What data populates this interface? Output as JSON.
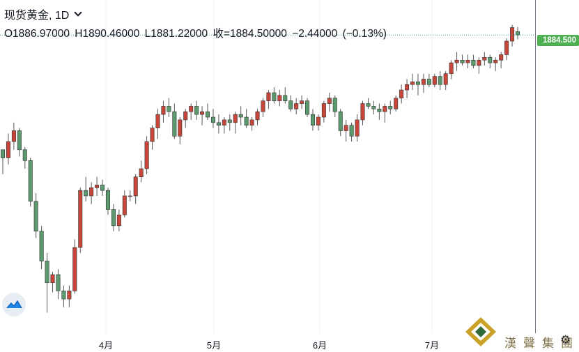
{
  "header": {
    "title": "现货黄金, 1D",
    "ohlc_line": "O1886.97000  H1890.46000  L1881.22000  收=1884.50000  −2.44000 (−0.13%)"
  },
  "last_price_label": "1884.500",
  "months": [
    "4月",
    "5月",
    "6月",
    "7月"
  ],
  "watermark_text": "漢聲集團",
  "colors": {
    "up": "#c84639",
    "down": "#5b9a6d",
    "price_tag": "#4caf50",
    "grid": "#eef0f3"
  },
  "icons": {
    "logo": "tradingview-cloud-icon",
    "settings": "gear-icon"
  },
  "chart_data": {
    "type": "candlestick",
    "title": "现货黄金, 1D",
    "x_axis_labels": [
      "4月",
      "5月",
      "6月",
      "7月"
    ],
    "ylim": [
      1670,
      1900
    ],
    "grid": true,
    "last_close": 1884.5,
    "candles": [
      [
        1800,
        1800,
        1782,
        1794
      ],
      [
        1794,
        1812,
        1789,
        1806
      ],
      [
        1806,
        1820,
        1800,
        1814
      ],
      [
        1814,
        1816,
        1795,
        1800
      ],
      [
        1800,
        1802,
        1786,
        1792
      ],
      [
        1792,
        1794,
        1758,
        1762
      ],
      [
        1762,
        1768,
        1735,
        1740
      ],
      [
        1740,
        1744,
        1712,
        1718
      ],
      [
        1718,
        1724,
        1680,
        1702
      ],
      [
        1702,
        1710,
        1695,
        1708
      ],
      [
        1708,
        1712,
        1690,
        1696
      ],
      [
        1696,
        1700,
        1684,
        1690
      ],
      [
        1690,
        1700,
        1684,
        1696
      ],
      [
        1696,
        1734,
        1694,
        1728
      ],
      [
        1728,
        1772,
        1724,
        1770
      ],
      [
        1770,
        1780,
        1762,
        1766
      ],
      [
        1766,
        1776,
        1760,
        1772
      ],
      [
        1772,
        1780,
        1766,
        1774
      ],
      [
        1774,
        1778,
        1766,
        1770
      ],
      [
        1770,
        1772,
        1752,
        1756
      ],
      [
        1756,
        1760,
        1740,
        1744
      ],
      [
        1744,
        1756,
        1740,
        1752
      ],
      [
        1752,
        1770,
        1750,
        1766
      ],
      [
        1766,
        1770,
        1762,
        1766
      ],
      [
        1766,
        1782,
        1760,
        1780
      ],
      [
        1780,
        1792,
        1776,
        1786
      ],
      [
        1786,
        1810,
        1782,
        1806
      ],
      [
        1806,
        1818,
        1800,
        1816
      ],
      [
        1816,
        1830,
        1808,
        1826
      ],
      [
        1826,
        1836,
        1820,
        1832
      ],
      [
        1832,
        1838,
        1824,
        1828
      ],
      [
        1828,
        1834,
        1808,
        1810
      ],
      [
        1810,
        1824,
        1804,
        1822
      ],
      [
        1822,
        1830,
        1816,
        1828
      ],
      [
        1828,
        1834,
        1822,
        1832
      ],
      [
        1832,
        1836,
        1822,
        1826
      ],
      [
        1826,
        1832,
        1818,
        1828
      ],
      [
        1828,
        1834,
        1822,
        1824
      ],
      [
        1824,
        1830,
        1816,
        1820
      ],
      [
        1820,
        1826,
        1812,
        1818
      ],
      [
        1818,
        1824,
        1812,
        1822
      ],
      [
        1822,
        1826,
        1814,
        1820
      ],
      [
        1820,
        1828,
        1812,
        1826
      ],
      [
        1826,
        1832,
        1818,
        1824
      ],
      [
        1824,
        1830,
        1816,
        1818
      ],
      [
        1818,
        1824,
        1814,
        1822
      ],
      [
        1822,
        1830,
        1818,
        1828
      ],
      [
        1828,
        1838,
        1824,
        1836
      ],
      [
        1836,
        1844,
        1830,
        1842
      ],
      [
        1842,
        1846,
        1834,
        1836
      ],
      [
        1836,
        1844,
        1832,
        1840
      ],
      [
        1840,
        1846,
        1834,
        1836
      ],
      [
        1836,
        1840,
        1828,
        1830
      ],
      [
        1830,
        1838,
        1826,
        1834
      ],
      [
        1834,
        1840,
        1830,
        1836
      ],
      [
        1836,
        1838,
        1824,
        1826
      ],
      [
        1826,
        1830,
        1814,
        1818
      ],
      [
        1818,
        1826,
        1814,
        1824
      ],
      [
        1824,
        1836,
        1820,
        1834
      ],
      [
        1834,
        1842,
        1828,
        1838
      ],
      [
        1838,
        1840,
        1824,
        1828
      ],
      [
        1828,
        1830,
        1810,
        1814
      ],
      [
        1814,
        1822,
        1806,
        1818
      ],
      [
        1818,
        1820,
        1806,
        1810
      ],
      [
        1810,
        1826,
        1806,
        1822
      ],
      [
        1822,
        1836,
        1818,
        1834
      ],
      [
        1834,
        1838,
        1830,
        1832
      ],
      [
        1832,
        1836,
        1826,
        1830
      ],
      [
        1830,
        1834,
        1822,
        1828
      ],
      [
        1828,
        1834,
        1820,
        1832
      ],
      [
        1832,
        1836,
        1826,
        1830
      ],
      [
        1830,
        1840,
        1828,
        1838
      ],
      [
        1838,
        1848,
        1834,
        1844
      ],
      [
        1844,
        1852,
        1838,
        1848
      ],
      [
        1848,
        1856,
        1844,
        1850
      ],
      [
        1850,
        1856,
        1840,
        1848
      ],
      [
        1848,
        1856,
        1842,
        1852
      ],
      [
        1852,
        1856,
        1846,
        1848
      ],
      [
        1848,
        1856,
        1846,
        1854
      ],
      [
        1854,
        1858,
        1844,
        1848
      ],
      [
        1848,
        1858,
        1844,
        1856
      ],
      [
        1856,
        1866,
        1852,
        1864
      ],
      [
        1864,
        1872,
        1858,
        1866
      ],
      [
        1866,
        1870,
        1862,
        1864
      ],
      [
        1864,
        1870,
        1860,
        1866
      ],
      [
        1866,
        1870,
        1860,
        1862
      ],
      [
        1862,
        1868,
        1856,
        1866
      ],
      [
        1866,
        1872,
        1862,
        1868
      ],
      [
        1868,
        1870,
        1860,
        1864
      ],
      [
        1864,
        1868,
        1858,
        1866
      ],
      [
        1866,
        1872,
        1860,
        1870
      ],
      [
        1870,
        1882,
        1866,
        1880
      ],
      [
        1880,
        1892,
        1876,
        1890
      ],
      [
        1886.97,
        1890.46,
        1881.22,
        1884.5
      ]
    ]
  }
}
